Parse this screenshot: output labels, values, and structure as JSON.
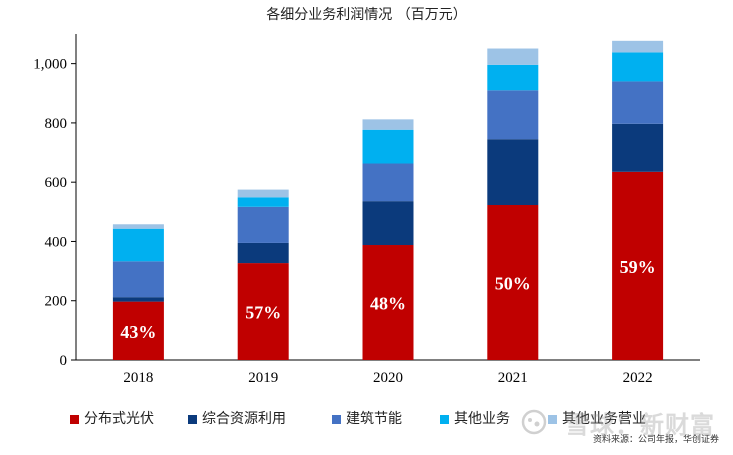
{
  "chart_data": {
    "type": "bar",
    "stacked": true,
    "title": "各细分业务利润情况 （百万元）",
    "categories": [
      "2018",
      "2019",
      "2020",
      "2021",
      "2022"
    ],
    "ylim": [
      0,
      1100
    ],
    "yticks": [
      0,
      200,
      400,
      600,
      800,
      1000
    ],
    "ytick_labels": [
      "0",
      "200",
      "400",
      "600",
      "800",
      "1,000"
    ],
    "grid": false,
    "legend_position": "bottom",
    "series": [
      {
        "name": "分布式光伏",
        "color": "#C00000",
        "values": [
          197,
          327,
          388,
          523,
          635
        ]
      },
      {
        "name": "综合资源利用",
        "color": "#0B3A7C",
        "values": [
          15,
          68,
          148,
          222,
          162
        ]
      },
      {
        "name": "建筑节能",
        "color": "#4472C4",
        "values": [
          121,
          122,
          127,
          165,
          143
        ]
      },
      {
        "name": "其他业务",
        "color": "#00B0F0",
        "values": [
          110,
          32,
          114,
          86,
          98
        ]
      },
      {
        "name": "其他业务营业",
        "color": "#9DC3E6",
        "values": [
          15,
          26,
          35,
          55,
          39
        ]
      }
    ],
    "data_labels": [
      "43%",
      "57%",
      "48%",
      "50%",
      "59%"
    ]
  },
  "source_text": "资料来源：公司年报，华创证券",
  "watermark_text": "雪球：新财富",
  "watermark_icon": "snowball-logo-icon"
}
